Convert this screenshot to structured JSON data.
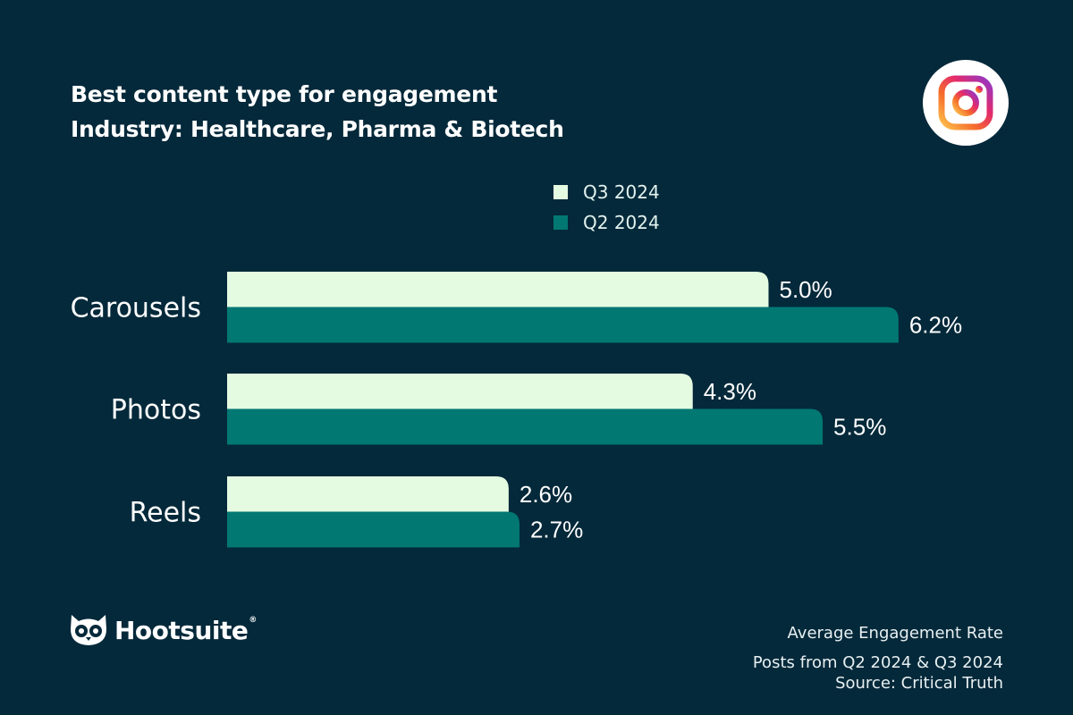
{
  "header": {
    "title": "Best content type for engagement",
    "subtitle": "Industry: Healthcare, Pharma & Biotech"
  },
  "logo": {
    "icon": "instagram-icon"
  },
  "legend": {
    "items": [
      {
        "label": "Q3 2024",
        "color": "#e4fbe1"
      },
      {
        "label": "Q2 2024",
        "color": "#027873"
      }
    ]
  },
  "chart_data": {
    "type": "bar",
    "orientation": "horizontal",
    "categories": [
      "Carousels",
      "Photos",
      "Reels"
    ],
    "series": [
      {
        "name": "Q3 2024",
        "values": [
          5.0,
          4.3,
          2.6
        ],
        "labels": [
          "5.0%",
          "4.3%",
          "2.6%"
        ],
        "color": "#e4fbe1"
      },
      {
        "name": "Q2 2024",
        "values": [
          6.2,
          5.5,
          2.7
        ],
        "labels": [
          "6.2%",
          "5.5%",
          "2.7%"
        ],
        "color": "#027873"
      }
    ],
    "unit": "%",
    "xlim": [
      0,
      7
    ],
    "grid": false,
    "legend_position": "top-right"
  },
  "brand": {
    "name": "Hootsuite",
    "reg": "®",
    "icon": "owl-icon"
  },
  "footer": {
    "metric": "Average Engagement Rate",
    "scope": "Posts from Q2 2024 & Q3 2024",
    "source": "Source: Critical Truth"
  }
}
